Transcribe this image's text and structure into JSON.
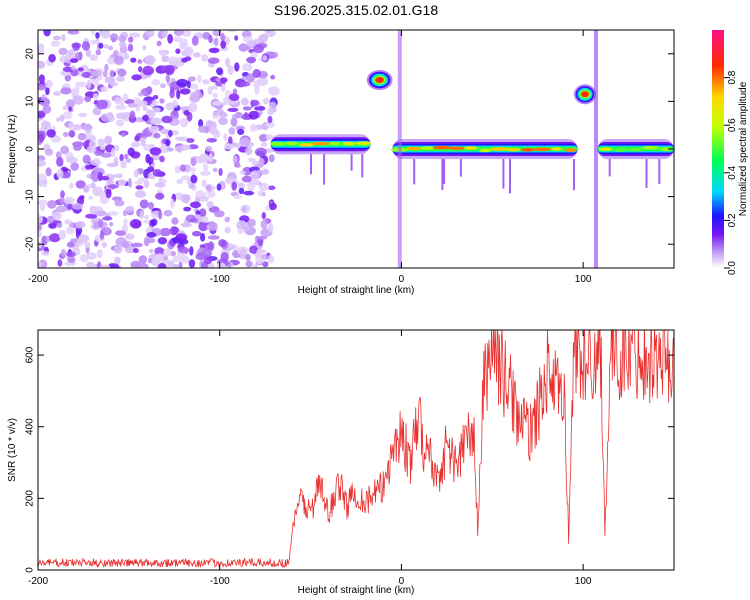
{
  "title": "S196.2025.315.02.01.G18",
  "chart_data": [
    {
      "type": "heatmap",
      "xlabel": "Height of straight line (km)",
      "ylabel": "Frequency (Hz)",
      "xlim": [
        -200,
        150
      ],
      "ylim": [
        -25,
        25
      ],
      "xticks": [
        -200,
        -100,
        0,
        100
      ],
      "yticks": [
        -20,
        -10,
        0,
        10,
        20
      ],
      "colorbar": {
        "label": "Normalized spectral amplitude",
        "range": [
          0.0,
          1.0
        ],
        "ticks": [
          0.0,
          0.2,
          0.4,
          0.6,
          0.8
        ]
      },
      "features": [
        {
          "kind": "noise",
          "x_range": [
            -200,
            -70
          ],
          "freq_range": [
            -25,
            25
          ]
        },
        {
          "kind": "band",
          "x_range": [
            -72,
            -17
          ],
          "freq_center": 1.0,
          "amplitude": 0.7
        },
        {
          "kind": "band",
          "x_range": [
            -5,
            97
          ],
          "freq_center": 0.0,
          "amplitude": 0.75
        },
        {
          "kind": "band",
          "x_range": [
            108,
            150
          ],
          "freq_center": 0.0,
          "amplitude": 0.6
        },
        {
          "kind": "blob",
          "x_range": [
            -18,
            -6
          ],
          "freq_center": 14.5,
          "amplitude": 0.85
        },
        {
          "kind": "blob",
          "x_range": [
            96,
            106
          ],
          "freq_center": 11.5,
          "amplitude": 0.85
        }
      ]
    },
    {
      "type": "line",
      "xlabel": "Height of straight line (km)",
      "ylabel": "SNR (10 * v/v)",
      "xlim": [
        -200,
        150
      ],
      "ylim": [
        0,
        670
      ],
      "xticks": [
        -200,
        -100,
        0,
        100
      ],
      "yticks": [
        0,
        200,
        400,
        600
      ],
      "series": [
        {
          "name": "SNR",
          "color": "#e8312f",
          "x": [
            -200,
            -150,
            -100,
            -62,
            -60,
            -55,
            -50,
            -45,
            -40,
            -35,
            -30,
            -25,
            -20,
            -15,
            -10,
            -5,
            0,
            5,
            10,
            13,
            15,
            20,
            25,
            30,
            35,
            40,
            42,
            45,
            50,
            52,
            55,
            60,
            65,
            70,
            75,
            80,
            85,
            90,
            92,
            95,
            100,
            102,
            105,
            110,
            112,
            115,
            120,
            130,
            140,
            150
          ],
          "y": [
            20,
            20,
            20,
            20,
            120,
            200,
            160,
            240,
            150,
            250,
            180,
            220,
            190,
            210,
            230,
            340,
            380,
            300,
            430,
            320,
            330,
            250,
            350,
            290,
            360,
            380,
            100,
            500,
            640,
            600,
            560,
            500,
            420,
            380,
            440,
            560,
            500,
            460,
            80,
            620,
            580,
            560,
            600,
            590,
            95,
            620,
            600,
            610,
            590,
            580
          ]
        }
      ]
    }
  ]
}
